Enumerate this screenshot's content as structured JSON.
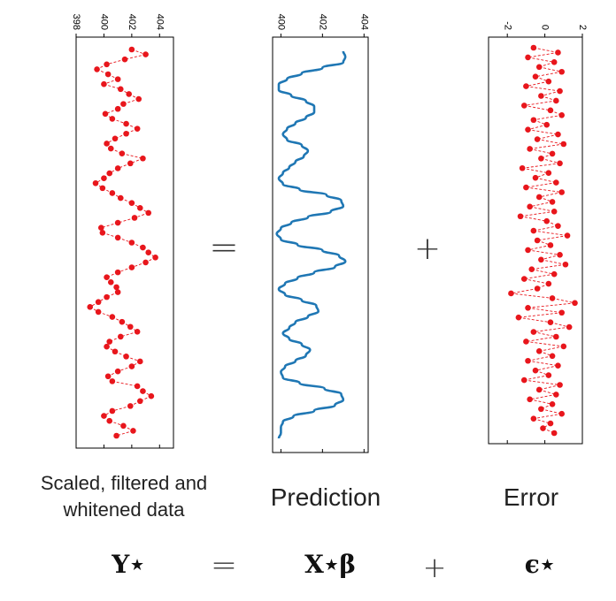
{
  "operators": {
    "equals": "=",
    "plus": "+"
  },
  "captions": {
    "data_line1": "Scaled, filtered and",
    "data_line2": "whitened data",
    "prediction": "Prediction",
    "error": "Error"
  },
  "equation": {
    "lhs": "Y⋆",
    "rhs_prediction": "X⋆β",
    "rhs_error": "ϵ⋆",
    "equals": "=",
    "plus": "+"
  },
  "colors": {
    "data": "#e8161c",
    "prediction": "#1f77b4",
    "axis": "#000000"
  },
  "chart_data": [
    {
      "type": "scatter",
      "name_hint": "data-panel",
      "orientation": "value-axis-on-top, rows-downward",
      "xlim": [
        398,
        405
      ],
      "ticks": [
        398,
        400,
        402,
        404
      ],
      "ylim": [
        0,
        120
      ],
      "x": [
        402.0,
        403.0,
        401.5,
        400.2,
        399.5,
        400.3,
        401.0,
        400.0,
        401.2,
        401.8,
        402.5,
        401.4,
        401.0,
        400.1,
        400.6,
        401.6,
        402.4,
        401.6,
        400.8,
        400.2,
        400.5,
        401.3,
        402.8,
        401.9,
        401.0,
        400.4,
        400.0,
        399.4,
        399.9,
        400.6,
        401.2,
        402.0,
        402.6,
        403.2,
        402.2,
        401.0,
        399.8,
        399.9,
        401.0,
        402.0,
        402.8,
        403.2,
        403.7,
        403.0,
        402.0,
        401.0,
        400.2,
        400.5,
        400.9,
        401.0,
        400.2,
        399.6,
        399.0,
        399.6,
        400.6,
        401.3,
        401.9,
        402.4,
        401.2,
        400.4,
        400.2,
        400.8,
        401.6,
        402.6,
        402.0,
        401.0,
        400.3,
        400.6,
        402.4,
        402.8,
        403.4,
        402.6,
        401.9,
        400.6,
        400.0,
        400.4,
        401.4,
        402.1,
        400.9
      ]
    },
    {
      "type": "line",
      "name_hint": "prediction-panel",
      "orientation": "value-axis-on-top, rows-downward",
      "xlim": [
        399.6,
        404.2
      ],
      "ticks": [
        400,
        402,
        404
      ],
      "ylim": [
        0,
        120
      ],
      "x": [
        403.0,
        403.1,
        403.0,
        402.0,
        401.0,
        400.3,
        399.9,
        399.9,
        400.5,
        401.2,
        401.6,
        401.6,
        401.2,
        400.7,
        400.3,
        400.1,
        400.3,
        401.0,
        401.3,
        401.1,
        400.7,
        400.4,
        400.1,
        399.9,
        400.1,
        400.9,
        402.2,
        402.9,
        403.0,
        402.4,
        401.3,
        400.5,
        400.0,
        399.8,
        400.0,
        400.8,
        402.0,
        402.8,
        403.1,
        402.6,
        401.6,
        400.8,
        400.2,
        399.9,
        400.2,
        401.0,
        401.7,
        401.8,
        401.3,
        400.7,
        400.4,
        400.1,
        400.4,
        401.0,
        401.4,
        401.2,
        400.7,
        400.2,
        400.0,
        400.1,
        400.9,
        402.1,
        402.9,
        403.0,
        402.6,
        401.6,
        400.6,
        400.1,
        400.0,
        400.0,
        399.9
      ]
    },
    {
      "type": "scatter",
      "name_hint": "error-panel",
      "orientation": "value-axis-on-top, rows-downward",
      "xlim": [
        -3,
        2
      ],
      "ticks": [
        -2,
        0,
        2
      ],
      "ylim": [
        0,
        120
      ],
      "x": [
        -0.6,
        0.7,
        -0.9,
        0.5,
        -0.3,
        0.9,
        -0.5,
        0.2,
        -1.0,
        0.8,
        -0.2,
        0.6,
        -1.1,
        0.3,
        0.9,
        -0.6,
        0.1,
        -0.9,
        0.7,
        -0.4,
        1.0,
        -0.8,
        0.4,
        -0.2,
        0.8,
        -1.2,
        0.2,
        -0.5,
        0.6,
        -1.0,
        0.9,
        -0.3,
        0.4,
        -0.8,
        0.5,
        -1.3,
        0.1,
        0.7,
        -0.6,
        1.2,
        -0.4,
        0.3,
        -0.9,
        0.8,
        -0.2,
        1.1,
        -0.7,
        0.5,
        -1.1,
        0.2,
        -0.4,
        -1.8,
        0.4,
        1.6,
        -0.9,
        0.9,
        -1.4,
        0.3,
        1.3,
        -0.6,
        0.6,
        -1.0,
        1.0,
        -0.3,
        0.4,
        -0.9,
        0.7,
        -0.5,
        0.2,
        -1.1,
        0.8,
        -0.3,
        0.6,
        -0.8,
        0.4,
        -0.2,
        0.9,
        -0.6,
        0.3,
        -0.1,
        0.5
      ]
    }
  ]
}
